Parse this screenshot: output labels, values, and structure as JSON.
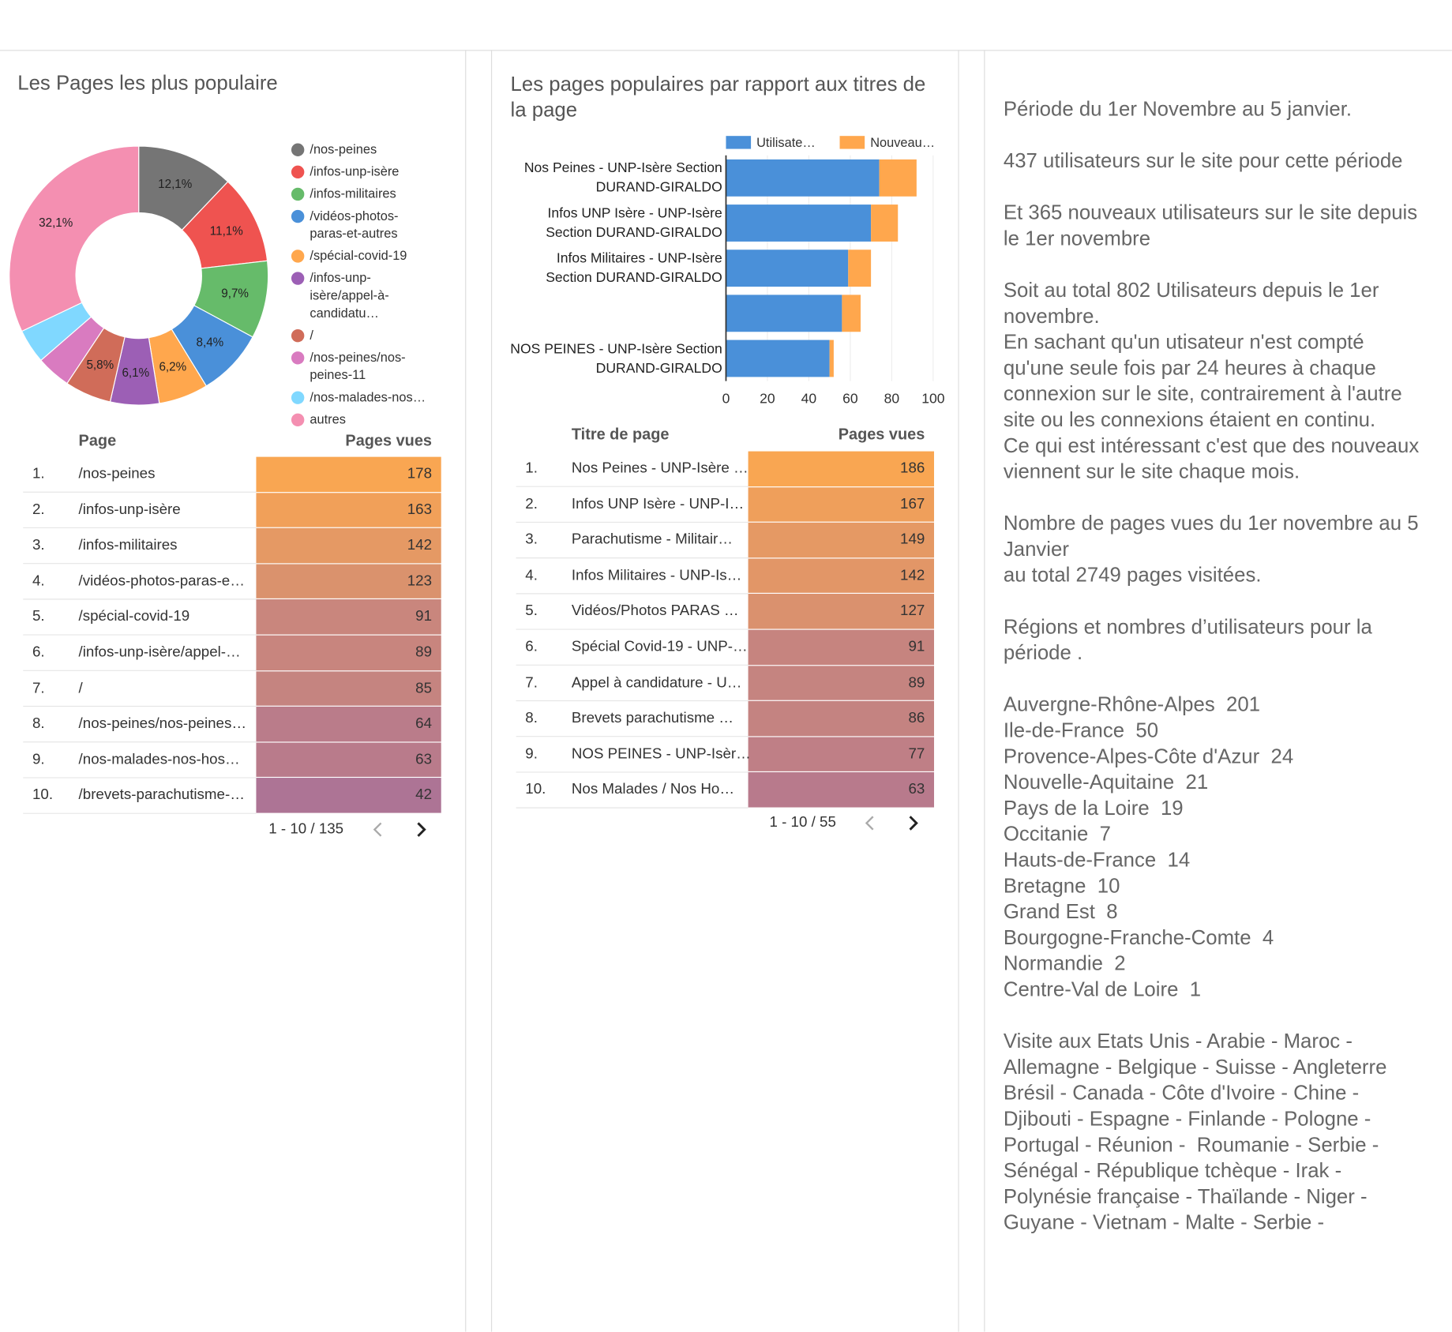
{
  "chart_data": [
    {
      "type": "pie",
      "donut": true,
      "title": "Les Pages les plus populaire",
      "categories": [
        "/nos-peines",
        "/infos-unp-isère",
        "/infos-militaires",
        "/vidéos-photos-paras-et-autres",
        "/spécial-covid-19",
        "/infos-unp-isère/appel-à-candidatu…",
        "/",
        "/nos-peines/nos-peines-11",
        "/nos-malades-nos…",
        "autres"
      ],
      "values": [
        12.1,
        11.1,
        9.7,
        8.4,
        6.2,
        6.1,
        5.8,
        4.3,
        4.3,
        32.1
      ],
      "value_labels": [
        "12,1%",
        "11,1%",
        "9,7%",
        "8,4%",
        "6,2%",
        "6,1%",
        "5,8%",
        null,
        null,
        "32,1%"
      ],
      "colors": [
        "#757575",
        "#ef5350",
        "#66bb6a",
        "#4a90d9",
        "#ffa74d",
        "#9c5fb5",
        "#d06c59",
        "#d97bc0",
        "#80d8ff",
        "#f48fb1"
      ]
    },
    {
      "type": "bar",
      "orientation": "horizontal",
      "stacked": true,
      "title": "Les pages populaires par rapport aux titres de la page",
      "categories": [
        "Nos Peines - UNP-Isère Section DURAND-GIRALDO",
        "Infos UNP Isère - UNP-Isère Section DURAND-GIRALDO",
        "Infos Militaires - UNP-Isère Section DURAND-GIRALDO",
        null,
        "NOS PEINES - UNP-Isère Section DURAND-GIRALDO"
      ],
      "series": [
        {
          "name": "Utilisate…",
          "color": "#4a90d9",
          "values": [
            74,
            70,
            59,
            56,
            50
          ]
        },
        {
          "name": "Nouveau…",
          "color": "#ffa74d",
          "values": [
            18,
            13,
            11,
            9,
            2
          ]
        }
      ],
      "xlim": [
        0,
        100
      ],
      "xticks": [
        0,
        20,
        40,
        60,
        80,
        100
      ],
      "grid": true
    }
  ],
  "tables": [
    {
      "columns": [
        "Page",
        "Pages vues"
      ],
      "rows": [
        [
          "1.",
          "/nos-peines",
          178
        ],
        [
          "2.",
          "/infos-unp-isère",
          163
        ],
        [
          "3.",
          "/infos-militaires",
          142
        ],
        [
          "4.",
          "/vidéos-photos-paras-e…",
          123
        ],
        [
          "5.",
          "/spécial-covid-19",
          91
        ],
        [
          "6.",
          "/infos-unp-isère/appel-…",
          89
        ],
        [
          "7.",
          "/",
          85
        ],
        [
          "8.",
          "/nos-peines/nos-peines…",
          64
        ],
        [
          "9.",
          "/nos-malades-nos-hos…",
          63
        ],
        [
          "10.",
          "/brevets-parachutisme-…",
          42
        ]
      ],
      "pagination": "1 - 10 / 135"
    },
    {
      "columns": [
        "Titre de page",
        "Pages vues"
      ],
      "rows": [
        [
          "1.",
          "Nos Peines - UNP-Isère …",
          186
        ],
        [
          "2.",
          "Infos UNP Isère - UNP-I…",
          167
        ],
        [
          "3.",
          "Parachutisme - Militair…",
          149
        ],
        [
          "4.",
          "Infos Militaires - UNP-Is…",
          142
        ],
        [
          "5.",
          "Vidéos/Photos PARAS …",
          127
        ],
        [
          "6.",
          "Spécial Covid-19 - UNP-…",
          91
        ],
        [
          "7.",
          "Appel à candidature - U…",
          89
        ],
        [
          "8.",
          "Brevets parachutisme …",
          86
        ],
        [
          "9.",
          "NOS PEINES - UNP-Isèr…",
          77
        ],
        [
          "10.",
          "Nos Malades / Nos Ho…",
          63
        ]
      ],
      "pagination": "1 - 10 / 55"
    }
  ],
  "text_panel": {
    "paragraphs": [
      [
        "Période du 1er Novembre au 5 janvier."
      ],
      [
        "437 utilisateurs sur le site pour cette période"
      ],
      [
        "Et 365 nouveaux utilisateurs sur le site depuis le 1er novembre"
      ],
      [
        "Soit au total 802 Utilisateurs depuis le 1er novembre.",
        "En sachant qu'un utisateur n'est compté qu'une seule fois par 24 heures à chaque connexion sur le site, contrairement à l'autre site ou les connexions étaient en continu.",
        "Ce qui est intéressant c'est que des nouveaux viennent sur le site chaque mois."
      ],
      [
        "Nombre de pages vues du 1er novembre au 5 Janvier",
        "au total 2749 pages visitées."
      ],
      [
        "Régions et nombres d’utilisateurs pour la période ."
      ],
      [
        "Auvergne-Rhône-Alpes  201",
        "Ile-de-France  50",
        "Provence-Alpes-Côte d'Azur  24",
        "Nouvelle-Aquitaine  21",
        "Pays de la Loire  19",
        "Occitanie  7",
        "Hauts-de-France  14",
        "Bretagne  10",
        "Grand Est  8",
        "Bourgogne-Franche-Comte  4",
        "Normandie  2",
        "Centre-Val de Loire  1"
      ],
      [
        "Visite aux Etats Unis - Arabie - Maroc - Allemagne - Belgique - Suisse - Angleterre Brésil - Canada - Côte d'Ivoire - Chine - Djibouti - Espagne - Finlande - Pologne - Portugal - Réunion -  Roumanie - Serbie - Sénégal - République tchèque - Irak - Polynésie française - Thaïlande - Niger - Guyane - Vietnam - Malte - Serbie -"
      ]
    ]
  }
}
